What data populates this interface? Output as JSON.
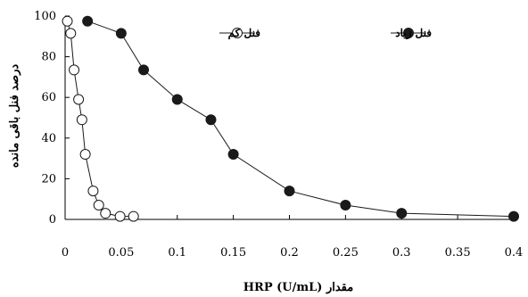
{
  "chart_data": {
    "type": "line",
    "xlabel": "مقدار HRP (U/mL)",
    "ylabel": "درصد فنل باقی مانده",
    "xlim": [
      0,
      0.4
    ],
    "ylim": [
      0,
      100
    ],
    "x_ticks": [
      "0",
      "0.05",
      "0.1",
      "0.15",
      "0.2",
      "0.25",
      "0.3",
      "0.35",
      "0.4"
    ],
    "x_tick_values": [
      0,
      0.05,
      0.1,
      0.15,
      0.2,
      0.25,
      0.3,
      0.35,
      0.4
    ],
    "y_ticks": [
      "0",
      "20",
      "40",
      "60",
      "80",
      "100"
    ],
    "y_tick_values": [
      0,
      20,
      40,
      60,
      80,
      100
    ],
    "grid": false,
    "legend_position": "top-right",
    "series": [
      {
        "name": "فنل زیاد",
        "marker": "filled-circle",
        "color": "#1a1a1a",
        "x": [
          0.02,
          0.05,
          0.07,
          0.1,
          0.13,
          0.15,
          0.2,
          0.25,
          0.3,
          0.4
        ],
        "y": [
          97.5,
          91.5,
          73.5,
          59,
          49,
          32,
          14,
          7,
          3,
          1.5
        ]
      },
      {
        "name": "فنل کم",
        "marker": "open-circle",
        "color": "#1a1a1a",
        "x": [
          0.002,
          0.005,
          0.008,
          0.012,
          0.015,
          0.018,
          0.025,
          0.03,
          0.036,
          0.049,
          0.061
        ],
        "y": [
          97.5,
          91.5,
          73.5,
          59,
          49,
          32,
          14,
          7,
          3,
          1.5,
          1.5
        ]
      }
    ]
  }
}
